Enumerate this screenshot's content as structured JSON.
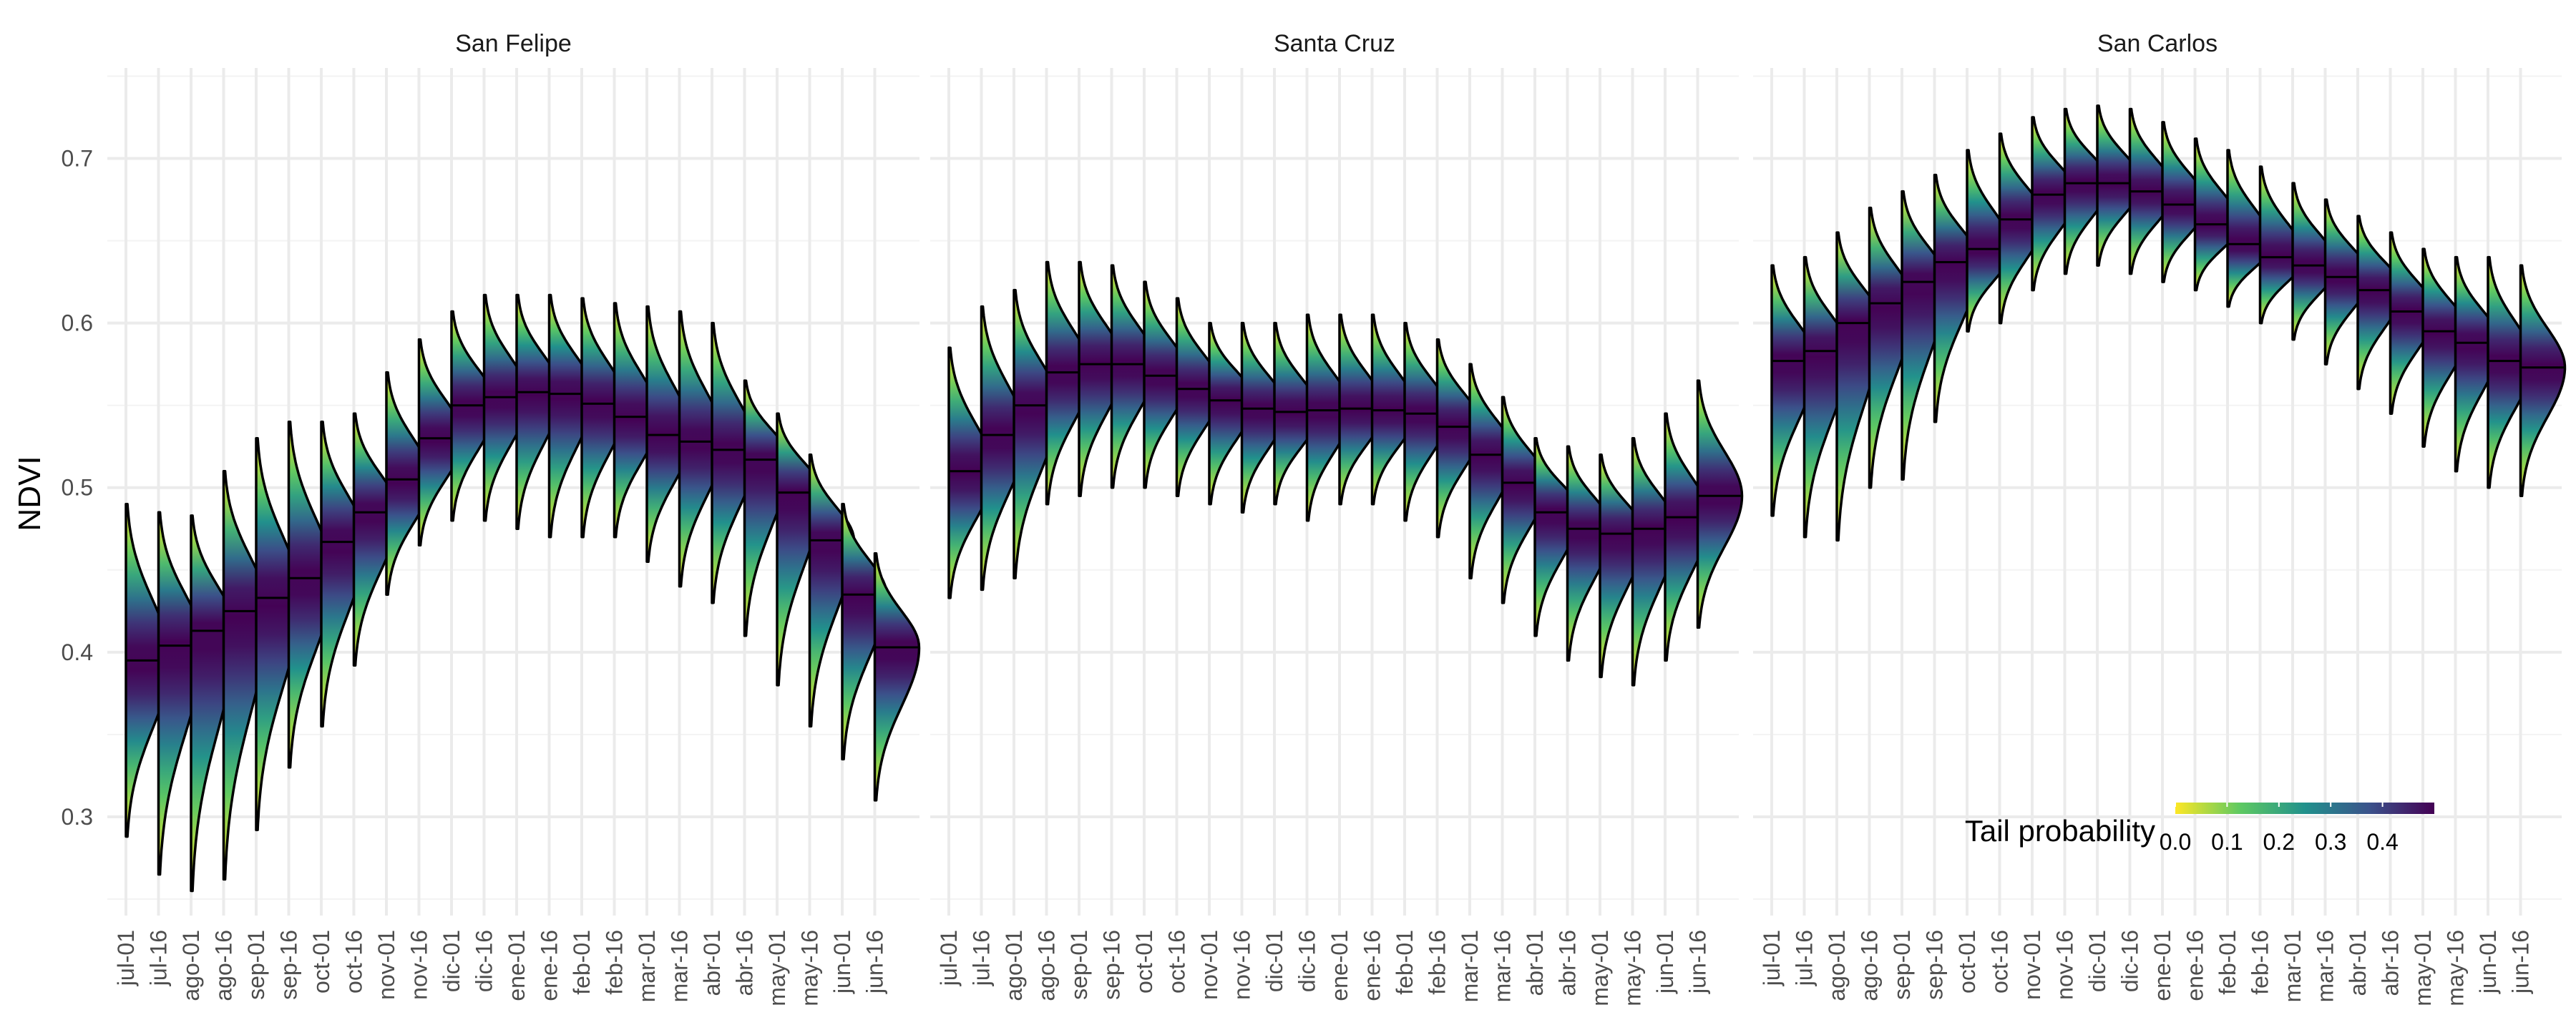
{
  "chart_data": {
    "type": "ridgeline",
    "ylabel": "NDVI",
    "xlabel": "",
    "ylim": [
      0.24,
      0.755
    ],
    "y_ticks": [
      0.3,
      0.4,
      0.5,
      0.6,
      0.7
    ],
    "y_tick_labels": [
      "0.3",
      "0.4",
      "0.5",
      "0.6",
      "0.7"
    ],
    "categories": [
      "jul-01",
      "jul-16",
      "ago-01",
      "ago-16",
      "sep-01",
      "sep-16",
      "oct-01",
      "oct-16",
      "nov-01",
      "nov-16",
      "dic-01",
      "dic-16",
      "ene-01",
      "ene-16",
      "feb-01",
      "feb-16",
      "mar-01",
      "mar-16",
      "abr-01",
      "abr-16",
      "may-01",
      "may-16",
      "jun-01",
      "jun-16"
    ],
    "fill_colormap": "viridis-reversed",
    "grid": true,
    "legend": {
      "title": "Tail probability",
      "ticks": [
        0.0,
        0.1,
        0.2,
        0.3,
        0.4
      ],
      "tick_labels": [
        "0.0",
        "0.1",
        "0.2",
        "0.3",
        "0.4"
      ],
      "range": [
        0.0,
        0.5
      ],
      "position": "bottom-right"
    },
    "panels": [
      {
        "title": "San Felipe",
        "distributions": [
          {
            "date": "jul-01",
            "median": 0.395,
            "min": 0.288,
            "max": 0.49
          },
          {
            "date": "jul-16",
            "median": 0.404,
            "min": 0.265,
            "max": 0.485
          },
          {
            "date": "ago-01",
            "median": 0.413,
            "min": 0.255,
            "max": 0.483
          },
          {
            "date": "ago-16",
            "median": 0.425,
            "min": 0.262,
            "max": 0.51
          },
          {
            "date": "sep-01",
            "median": 0.433,
            "min": 0.292,
            "max": 0.53
          },
          {
            "date": "sep-16",
            "median": 0.445,
            "min": 0.33,
            "max": 0.54
          },
          {
            "date": "oct-01",
            "median": 0.467,
            "min": 0.355,
            "max": 0.54
          },
          {
            "date": "oct-16",
            "median": 0.485,
            "min": 0.392,
            "max": 0.545
          },
          {
            "date": "nov-01",
            "median": 0.505,
            "min": 0.435,
            "max": 0.57
          },
          {
            "date": "nov-16",
            "median": 0.53,
            "min": 0.465,
            "max": 0.59
          },
          {
            "date": "dic-01",
            "median": 0.55,
            "min": 0.48,
            "max": 0.607
          },
          {
            "date": "dic-16",
            "median": 0.555,
            "min": 0.48,
            "max": 0.617
          },
          {
            "date": "ene-01",
            "median": 0.558,
            "min": 0.475,
            "max": 0.617
          },
          {
            "date": "ene-16",
            "median": 0.557,
            "min": 0.47,
            "max": 0.617
          },
          {
            "date": "feb-01",
            "median": 0.551,
            "min": 0.47,
            "max": 0.615
          },
          {
            "date": "feb-16",
            "median": 0.543,
            "min": 0.47,
            "max": 0.612
          },
          {
            "date": "mar-01",
            "median": 0.532,
            "min": 0.455,
            "max": 0.61
          },
          {
            "date": "mar-16",
            "median": 0.528,
            "min": 0.44,
            "max": 0.607
          },
          {
            "date": "abr-01",
            "median": 0.523,
            "min": 0.43,
            "max": 0.6
          },
          {
            "date": "abr-16",
            "median": 0.517,
            "min": 0.41,
            "max": 0.565
          },
          {
            "date": "may-01",
            "median": 0.497,
            "min": 0.38,
            "max": 0.545
          },
          {
            "date": "may-16",
            "median": 0.468,
            "min": 0.355,
            "max": 0.52
          },
          {
            "date": "jun-01",
            "median": 0.435,
            "min": 0.335,
            "max": 0.49
          },
          {
            "date": "jun-16",
            "median": 0.403,
            "min": 0.31,
            "max": 0.46
          }
        ]
      },
      {
        "title": "Santa Cruz",
        "distributions": [
          {
            "date": "jul-01",
            "median": 0.51,
            "min": 0.433,
            "max": 0.585
          },
          {
            "date": "jul-16",
            "median": 0.532,
            "min": 0.438,
            "max": 0.61
          },
          {
            "date": "ago-01",
            "median": 0.55,
            "min": 0.445,
            "max": 0.62
          },
          {
            "date": "ago-16",
            "median": 0.57,
            "min": 0.49,
            "max": 0.637
          },
          {
            "date": "sep-01",
            "median": 0.575,
            "min": 0.495,
            "max": 0.637
          },
          {
            "date": "sep-16",
            "median": 0.575,
            "min": 0.5,
            "max": 0.635
          },
          {
            "date": "oct-01",
            "median": 0.568,
            "min": 0.5,
            "max": 0.625
          },
          {
            "date": "oct-16",
            "median": 0.56,
            "min": 0.495,
            "max": 0.615
          },
          {
            "date": "nov-01",
            "median": 0.553,
            "min": 0.49,
            "max": 0.6
          },
          {
            "date": "nov-16",
            "median": 0.548,
            "min": 0.485,
            "max": 0.6
          },
          {
            "date": "dic-01",
            "median": 0.546,
            "min": 0.49,
            "max": 0.6
          },
          {
            "date": "dic-16",
            "median": 0.547,
            "min": 0.48,
            "max": 0.605
          },
          {
            "date": "ene-01",
            "median": 0.548,
            "min": 0.49,
            "max": 0.605
          },
          {
            "date": "ene-16",
            "median": 0.547,
            "min": 0.49,
            "max": 0.605
          },
          {
            "date": "feb-01",
            "median": 0.545,
            "min": 0.48,
            "max": 0.6
          },
          {
            "date": "feb-16",
            "median": 0.537,
            "min": 0.47,
            "max": 0.59
          },
          {
            "date": "mar-01",
            "median": 0.52,
            "min": 0.445,
            "max": 0.575
          },
          {
            "date": "mar-16",
            "median": 0.503,
            "min": 0.43,
            "max": 0.555
          },
          {
            "date": "abr-01",
            "median": 0.485,
            "min": 0.41,
            "max": 0.53
          },
          {
            "date": "abr-16",
            "median": 0.475,
            "min": 0.395,
            "max": 0.525
          },
          {
            "date": "may-01",
            "median": 0.472,
            "min": 0.385,
            "max": 0.52
          },
          {
            "date": "may-16",
            "median": 0.475,
            "min": 0.38,
            "max": 0.53
          },
          {
            "date": "jun-01",
            "median": 0.482,
            "min": 0.395,
            "max": 0.545
          },
          {
            "date": "jun-16",
            "median": 0.495,
            "min": 0.415,
            "max": 0.565
          }
        ]
      },
      {
        "title": "San Carlos",
        "distributions": [
          {
            "date": "jul-01",
            "median": 0.577,
            "min": 0.483,
            "max": 0.635
          },
          {
            "date": "jul-16",
            "median": 0.583,
            "min": 0.47,
            "max": 0.64
          },
          {
            "date": "ago-01",
            "median": 0.6,
            "min": 0.468,
            "max": 0.655
          },
          {
            "date": "ago-16",
            "median": 0.612,
            "min": 0.5,
            "max": 0.67
          },
          {
            "date": "sep-01",
            "median": 0.625,
            "min": 0.505,
            "max": 0.68
          },
          {
            "date": "sep-16",
            "median": 0.637,
            "min": 0.54,
            "max": 0.69
          },
          {
            "date": "oct-01",
            "median": 0.645,
            "min": 0.595,
            "max": 0.705
          },
          {
            "date": "oct-16",
            "median": 0.663,
            "min": 0.6,
            "max": 0.715
          },
          {
            "date": "nov-01",
            "median": 0.678,
            "min": 0.62,
            "max": 0.725
          },
          {
            "date": "nov-16",
            "median": 0.685,
            "min": 0.63,
            "max": 0.73
          },
          {
            "date": "dic-01",
            "median": 0.685,
            "min": 0.635,
            "max": 0.732
          },
          {
            "date": "dic-16",
            "median": 0.68,
            "min": 0.63,
            "max": 0.73
          },
          {
            "date": "ene-01",
            "median": 0.672,
            "min": 0.625,
            "max": 0.722
          },
          {
            "date": "ene-16",
            "median": 0.66,
            "min": 0.62,
            "max": 0.712
          },
          {
            "date": "feb-01",
            "median": 0.648,
            "min": 0.61,
            "max": 0.705
          },
          {
            "date": "feb-16",
            "median": 0.64,
            "min": 0.6,
            "max": 0.695
          },
          {
            "date": "mar-01",
            "median": 0.635,
            "min": 0.59,
            "max": 0.685
          },
          {
            "date": "mar-16",
            "median": 0.628,
            "min": 0.575,
            "max": 0.675
          },
          {
            "date": "abr-01",
            "median": 0.62,
            "min": 0.56,
            "max": 0.665
          },
          {
            "date": "abr-16",
            "median": 0.607,
            "min": 0.545,
            "max": 0.655
          },
          {
            "date": "may-01",
            "median": 0.595,
            "min": 0.525,
            "max": 0.645
          },
          {
            "date": "may-16",
            "median": 0.588,
            "min": 0.51,
            "max": 0.64
          },
          {
            "date": "jun-01",
            "median": 0.577,
            "min": 0.5,
            "max": 0.64
          },
          {
            "date": "jun-16",
            "median": 0.573,
            "min": 0.495,
            "max": 0.635
          }
        ]
      }
    ]
  }
}
